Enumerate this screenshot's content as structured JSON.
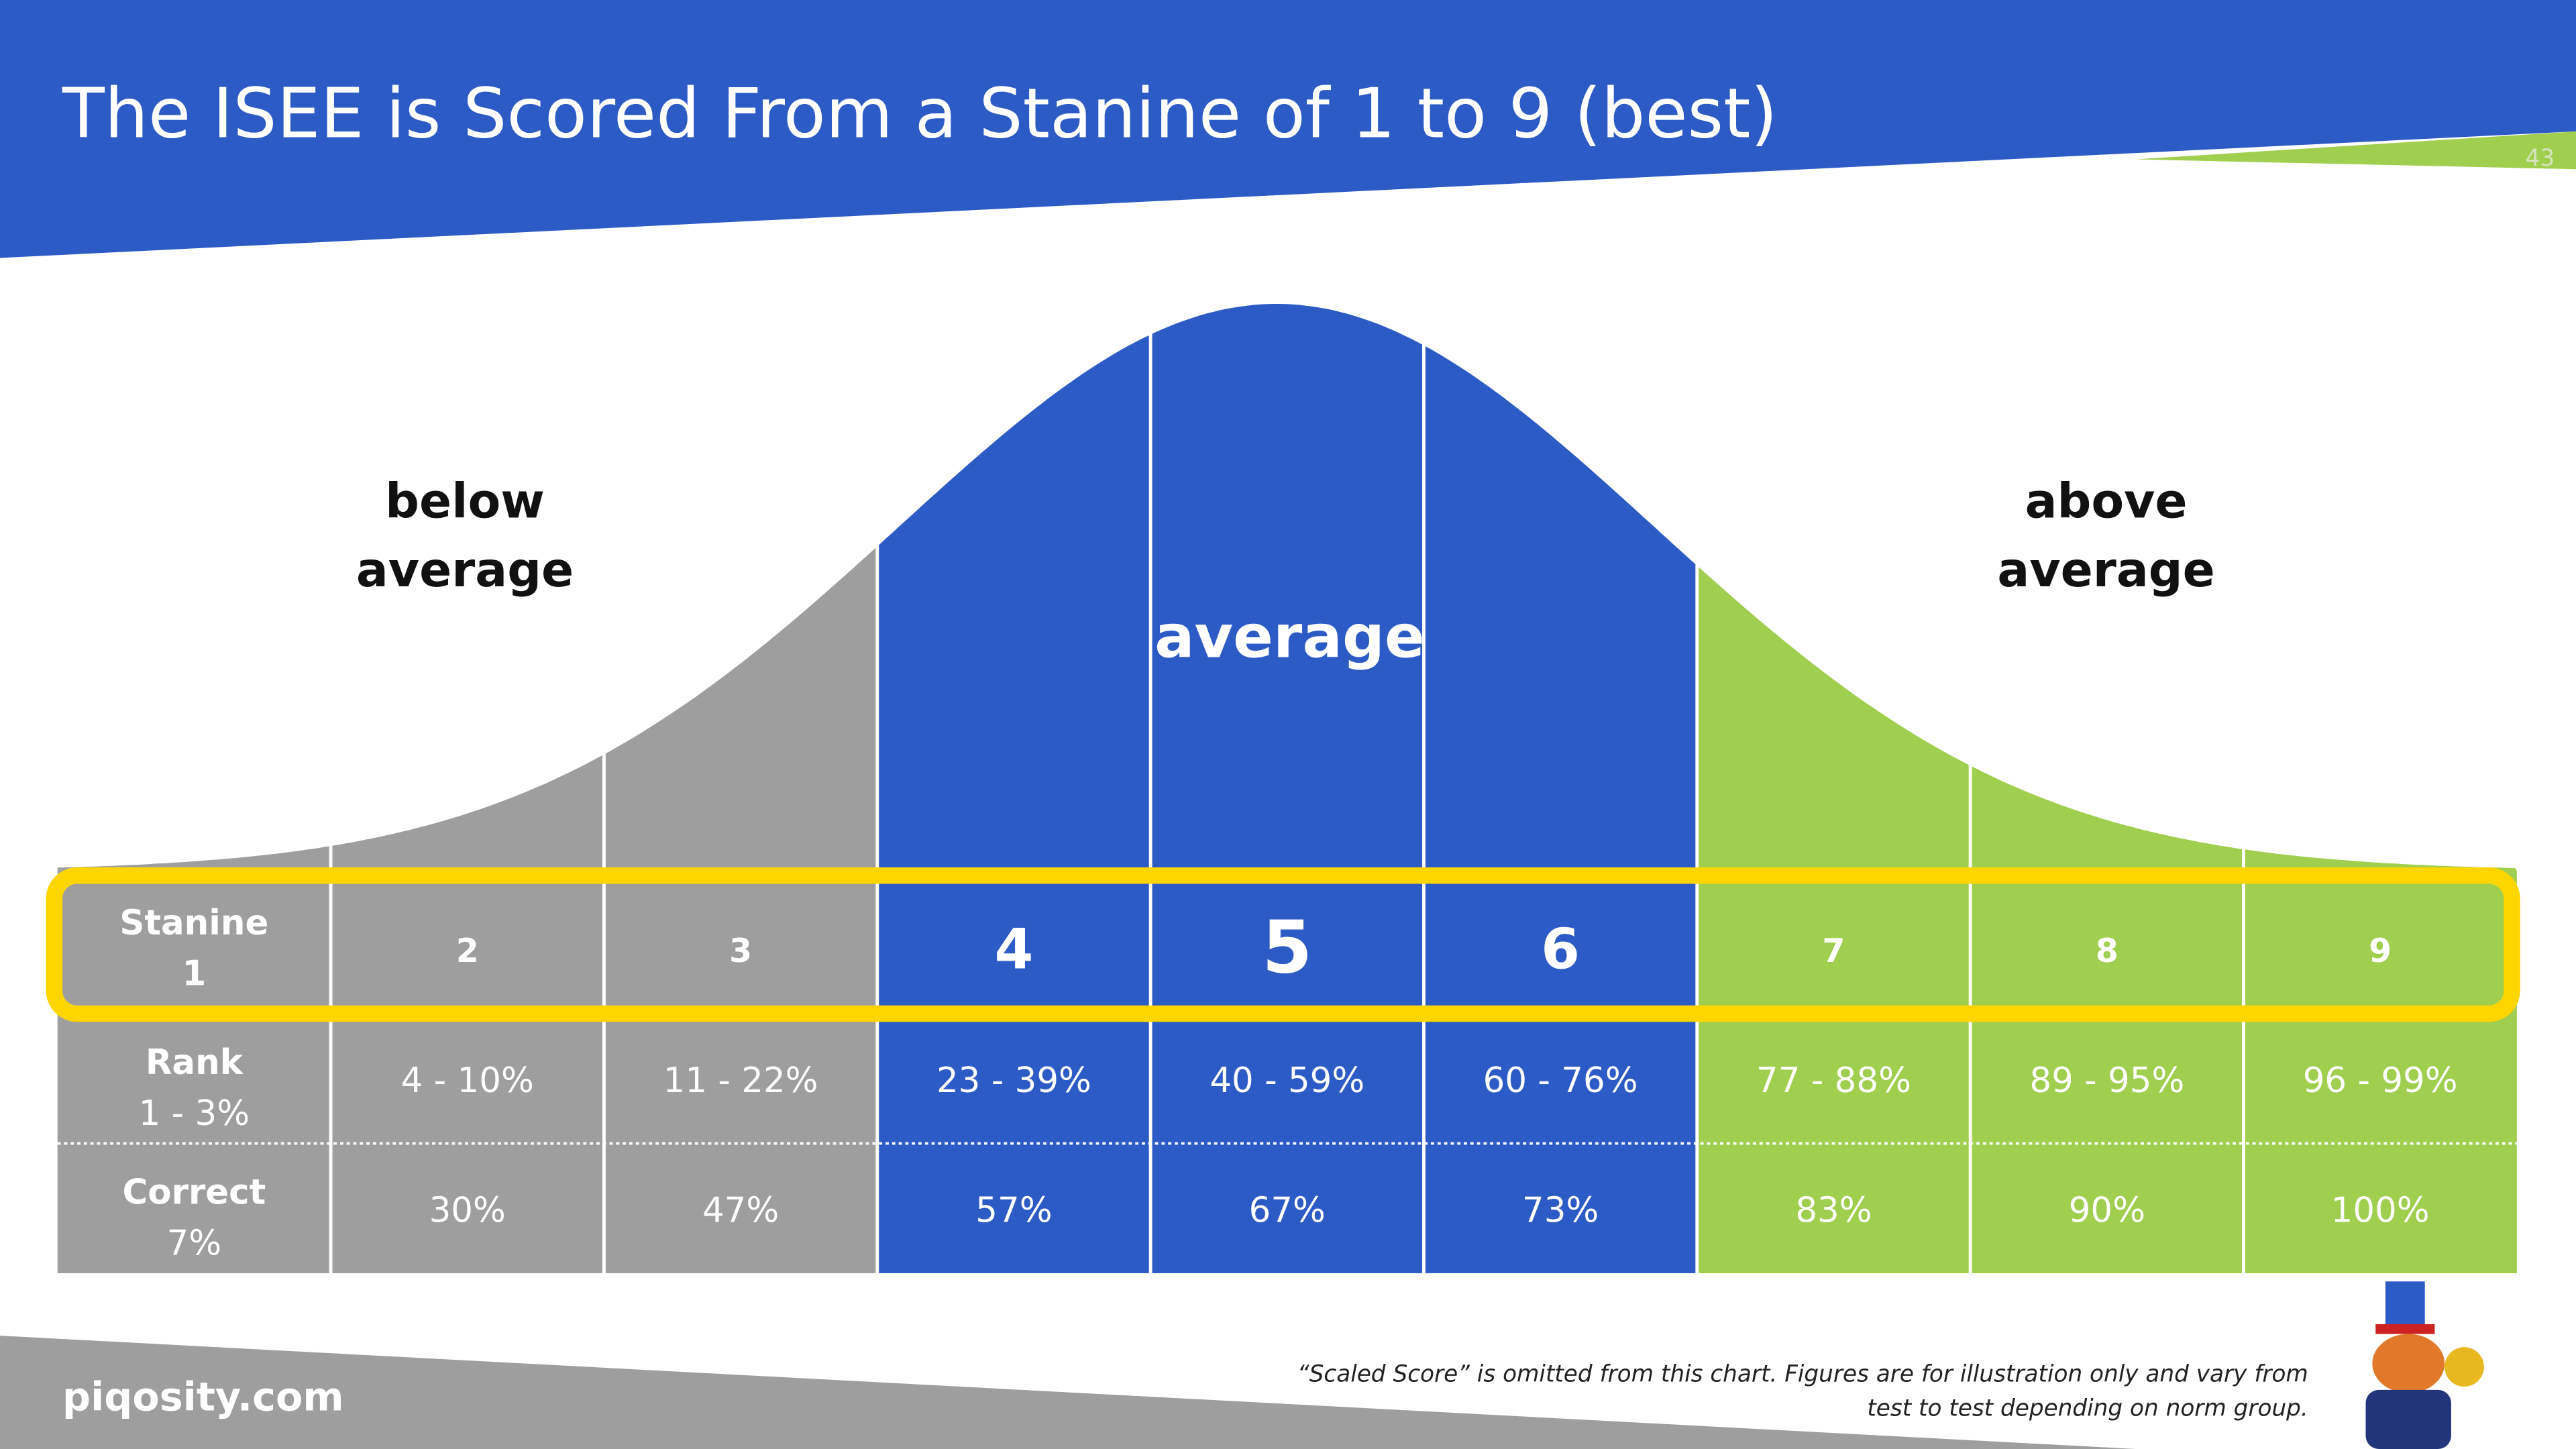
{
  "header": {
    "title": "The ISEE is Scored From a Stanine of 1 to 9 (best)",
    "page_number": "43"
  },
  "curve": {
    "below_label": [
      "below",
      "average"
    ],
    "average_label": "average",
    "above_label": [
      "above",
      "average"
    ]
  },
  "table": {
    "row_headers": [
      "Stanine",
      "Rank",
      "Correct"
    ],
    "rows": [
      [
        "1",
        "2",
        "3",
        "4",
        "5",
        "6",
        "7",
        "8",
        "9"
      ],
      [
        "1 - 3%",
        "4 - 10%",
        "11 - 22%",
        "23 - 39%",
        "40 - 59%",
        "60 - 76%",
        "77 - 88%",
        "89 - 95%",
        "96 - 99%"
      ],
      [
        "7%",
        "30%",
        "47%",
        "57%",
        "67%",
        "73%",
        "83%",
        "90%",
        "100%"
      ]
    ]
  },
  "footer": {
    "site": "piqosity.com",
    "note": [
      "“Scaled Score” is omitted from this chart. Figures are for illustration only and vary from",
      "test to test depending on norm group."
    ]
  }
}
